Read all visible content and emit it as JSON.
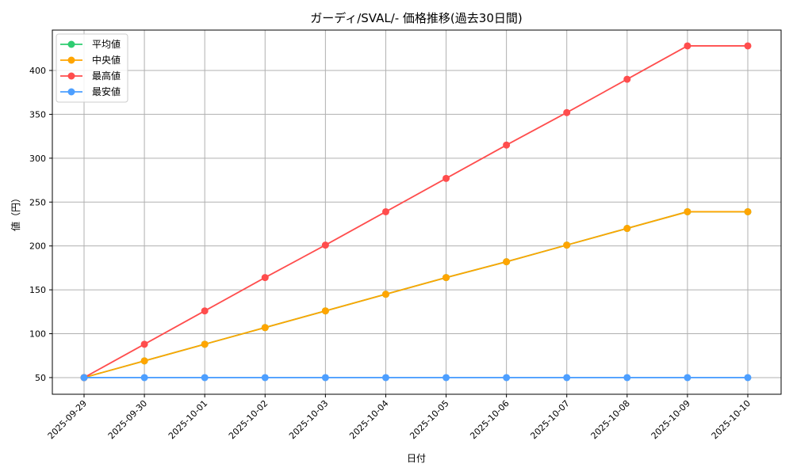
{
  "chart_data": {
    "type": "line",
    "title": "ガーディ/SVAL/- 価格推移(過去30日間)",
    "xlabel": "日付",
    "ylabel": "値（円）",
    "ylim": [
      31,
      446
    ],
    "yticks": [
      50,
      100,
      150,
      200,
      250,
      300,
      350,
      400
    ],
    "grid": true,
    "legend_position": "top-left",
    "categories": [
      "2025-09-29",
      "2025-09-30",
      "2025-10-01",
      "2025-10-02",
      "2025-10-03",
      "2025-10-04",
      "2025-10-05",
      "2025-10-06",
      "2025-10-07",
      "2025-10-08",
      "2025-10-09",
      "2025-10-10"
    ],
    "series": [
      {
        "name": "平均値",
        "color": "#2ecc71",
        "values": [
          50,
          69,
          88,
          107,
          126,
          145,
          164,
          182,
          201,
          220,
          239,
          239
        ]
      },
      {
        "name": "中央値",
        "color": "#ffa500",
        "values": [
          50,
          69,
          88,
          107,
          126,
          145,
          164,
          182,
          201,
          220,
          239,
          239
        ]
      },
      {
        "name": "最高値",
        "color": "#ff4d4d",
        "values": [
          50,
          88,
          126,
          164,
          201,
          239,
          277,
          315,
          352,
          390,
          428,
          428
        ]
      },
      {
        "name": "最安値",
        "color": "#4d9fff",
        "values": [
          50,
          50,
          50,
          50,
          50,
          50,
          50,
          50,
          50,
          50,
          50,
          50
        ]
      }
    ]
  }
}
